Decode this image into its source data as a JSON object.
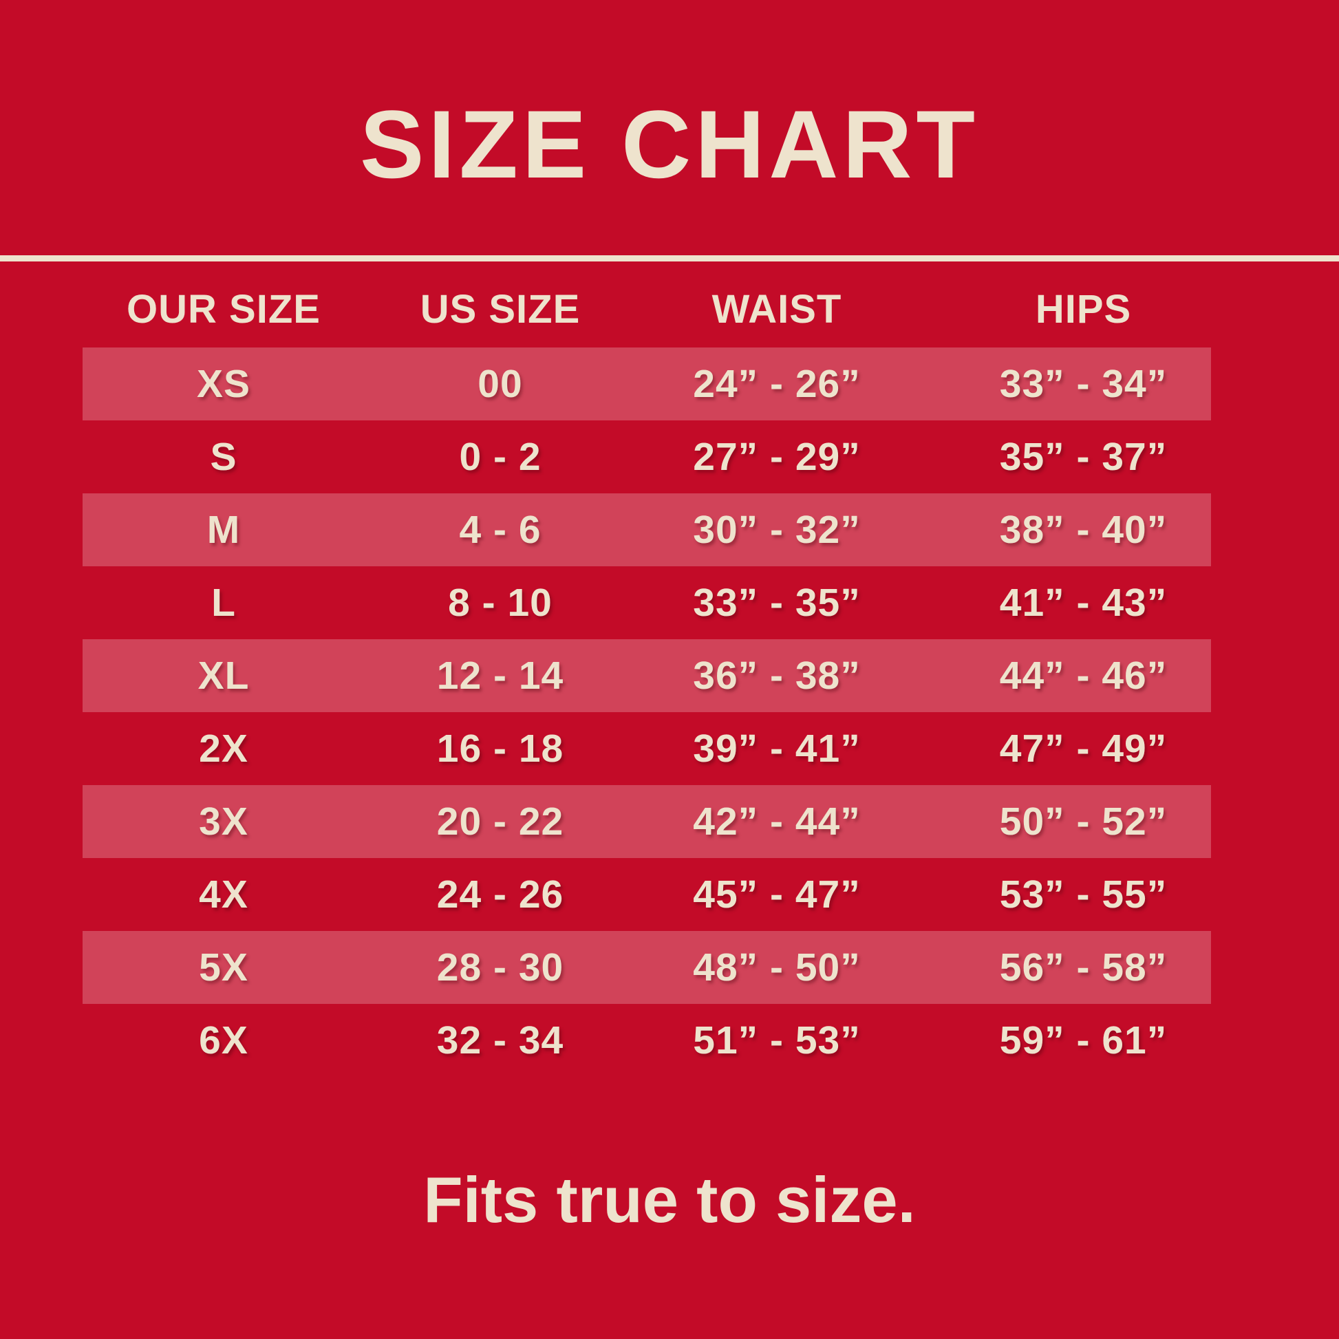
{
  "chart_data": {
    "type": "table",
    "title": "SIZE CHART",
    "columns": [
      "OUR SIZE",
      "US SIZE",
      "WAIST",
      "HIPS"
    ],
    "rows": [
      [
        "XS",
        "00",
        "24” - 26”",
        "33” - 34”"
      ],
      [
        "S",
        "0 - 2",
        "27” - 29”",
        "35” - 37”"
      ],
      [
        "M",
        "4 - 6",
        "30” - 32”",
        "38” - 40”"
      ],
      [
        "L",
        "8 - 10",
        "33” - 35”",
        "41” - 43”"
      ],
      [
        "XL",
        "12 - 14",
        "36” - 38”",
        "44” - 46”"
      ],
      [
        "2X",
        "16 - 18",
        "39” - 41”",
        "47” - 49”"
      ],
      [
        "3X",
        "20 - 22",
        "42” - 44”",
        "50” - 52”"
      ],
      [
        "4X",
        "24 - 26",
        "45” - 47”",
        "53” - 55”"
      ],
      [
        "5X",
        "28 - 30",
        "48” - 50”",
        "56” - 58”"
      ],
      [
        "6X",
        "32 - 34",
        "51” - 53”",
        "59” - 61”"
      ]
    ],
    "note": "Fits true to size.",
    "layout_hints": {
      "striped_rows": "odd rows highlighted (XS, M, XL, 3X, 5X)",
      "grid": "off",
      "legend": "none"
    }
  },
  "colors": {
    "background": "#C30B28",
    "stripe": "#D04158",
    "text": "#EEE3CD",
    "divider": "#EEE3CD"
  }
}
